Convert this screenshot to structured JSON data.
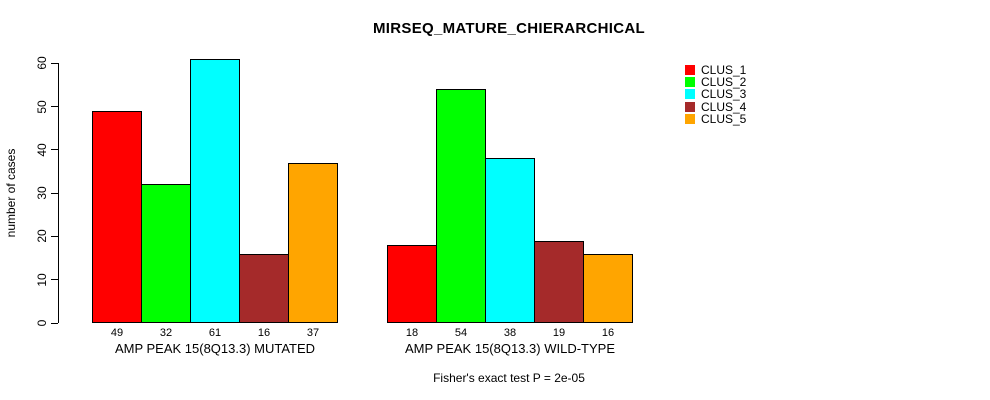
{
  "chart_data": {
    "type": "bar",
    "title": "MIRSEQ_MATURE_CHIERARCHICAL",
    "xlabel": "",
    "ylabel": "number of cases",
    "ylim": [
      0,
      60
    ],
    "yticks": [
      0,
      10,
      20,
      30,
      40,
      50,
      60
    ],
    "grid": false,
    "legend_position": "top-right",
    "categories": [
      "AMP PEAK 15(8Q13.3) MUTATED",
      "AMP PEAK 15(8Q13.3) WILD-TYPE"
    ],
    "series": [
      {
        "name": "CLUS_1",
        "color": "#FF0000",
        "values": [
          49,
          18
        ]
      },
      {
        "name": "CLUS_2",
        "color": "#00FF00",
        "values": [
          32,
          54
        ]
      },
      {
        "name": "CLUS_3",
        "color": "#00FFFF",
        "values": [
          61,
          38
        ]
      },
      {
        "name": "CLUS_4",
        "color": "#A52A2A",
        "values": [
          16,
          19
        ]
      },
      {
        "name": "CLUS_5",
        "color": "#FFA500",
        "values": [
          37,
          16
        ]
      }
    ],
    "bar_value_labels": [
      [
        49,
        32,
        61,
        16,
        37
      ],
      [
        18,
        54,
        38,
        19,
        16
      ]
    ],
    "annotation": "Fisher's exact test P = 2e-05"
  }
}
